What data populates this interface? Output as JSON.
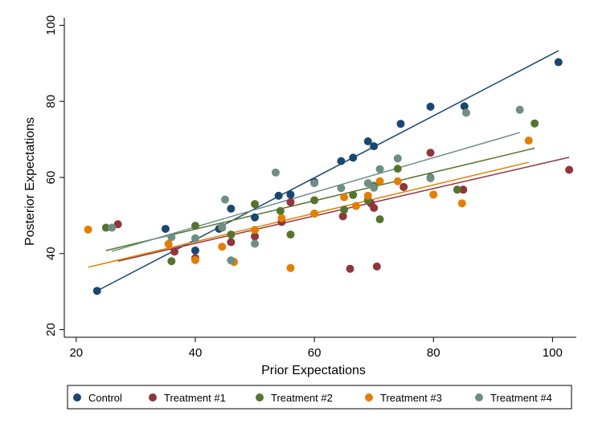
{
  "chart_data": {
    "type": "scatter",
    "title": "",
    "xlabel": "Prior Expectations",
    "ylabel": "Posterior Expectations",
    "xlim": [
      18,
      104
    ],
    "ylim": [
      18,
      102
    ],
    "xticks": [
      20,
      40,
      60,
      80,
      100
    ],
    "yticks": [
      20,
      40,
      60,
      80,
      100
    ],
    "grid": false,
    "legend_position": "bottom",
    "series": [
      {
        "name": "Control",
        "color": "#1a476f",
        "points": [
          [
            23.5,
            30.2
          ],
          [
            35,
            46.5
          ],
          [
            40,
            40.8
          ],
          [
            44,
            46.5
          ],
          [
            46,
            51.8
          ],
          [
            50,
            49.5
          ],
          [
            54,
            55.2
          ],
          [
            56,
            55.5
          ],
          [
            60,
            58.8
          ],
          [
            64.5,
            64.3
          ],
          [
            66.5,
            65.2
          ],
          [
            69,
            69.5
          ],
          [
            70,
            68.2
          ],
          [
            74.5,
            74.1
          ],
          [
            79.5,
            78.6
          ],
          [
            85.2,
            78.7
          ],
          [
            101,
            90.3
          ]
        ],
        "fit": [
          [
            23.5,
            30.2
          ],
          [
            101,
            93.3
          ]
        ]
      },
      {
        "name": "Treatment #1",
        "color": "#90353b",
        "points": [
          [
            27,
            47.7
          ],
          [
            36.5,
            40.5
          ],
          [
            40,
            38.8
          ],
          [
            46,
            43
          ],
          [
            50,
            44.5
          ],
          [
            54.5,
            48.3
          ],
          [
            56,
            53.5
          ],
          [
            60,
            50.5
          ],
          [
            64.8,
            49.8
          ],
          [
            66,
            36
          ],
          [
            69.5,
            53.2
          ],
          [
            70,
            52
          ],
          [
            70.5,
            36.6
          ],
          [
            75,
            57.5
          ],
          [
            79.5,
            66.5
          ],
          [
            85,
            56.8
          ],
          [
            102.8,
            62
          ]
        ],
        "fit": [
          [
            27,
            38
          ],
          [
            102.8,
            65.3
          ]
        ]
      },
      {
        "name": "Treatment #2",
        "color": "#55752f",
        "points": [
          [
            25,
            46.8
          ],
          [
            36,
            38
          ],
          [
            40,
            47.3
          ],
          [
            44.5,
            46.8
          ],
          [
            46,
            45
          ],
          [
            50,
            53
          ],
          [
            54.3,
            51.2
          ],
          [
            56,
            45
          ],
          [
            60,
            54
          ],
          [
            65,
            51.5
          ],
          [
            66.5,
            55.4
          ],
          [
            69,
            54
          ],
          [
            70,
            57.8
          ],
          [
            71,
            49
          ],
          [
            74,
            62.3
          ],
          [
            79.5,
            60
          ],
          [
            84,
            56.8
          ],
          [
            97,
            74.2
          ]
        ],
        "fit": [
          [
            25,
            40.8
          ],
          [
            97,
            67.7
          ]
        ]
      },
      {
        "name": "Treatment #3",
        "color": "#e37e00",
        "points": [
          [
            22,
            46.3
          ],
          [
            35.5,
            42.5
          ],
          [
            40,
            38.3
          ],
          [
            44.5,
            41.8
          ],
          [
            46.5,
            37.8
          ],
          [
            50,
            46.2
          ],
          [
            54.5,
            49.3
          ],
          [
            56,
            36.2
          ],
          [
            60,
            50.5
          ],
          [
            65,
            54.8
          ],
          [
            67,
            52.5
          ],
          [
            69,
            55.2
          ],
          [
            71,
            59
          ],
          [
            74,
            59
          ],
          [
            80,
            55.5
          ],
          [
            84.8,
            53.2
          ],
          [
            96,
            69.7
          ]
        ],
        "fit": [
          [
            22,
            36.4
          ],
          [
            96,
            64
          ]
        ]
      },
      {
        "name": "Treatment #4",
        "color": "#6e8e84",
        "points": [
          [
            26,
            46.8
          ],
          [
            36,
            44.3
          ],
          [
            40,
            44
          ],
          [
            44.5,
            47
          ],
          [
            45,
            54.2
          ],
          [
            46,
            38.2
          ],
          [
            50,
            42.6
          ],
          [
            53.5,
            61.3
          ],
          [
            60,
            58.5
          ],
          [
            64.5,
            57.2
          ],
          [
            69,
            58.5
          ],
          [
            70,
            57.3
          ],
          [
            71,
            62.2
          ],
          [
            74,
            65
          ],
          [
            79.5,
            59.8
          ],
          [
            85.5,
            77
          ],
          [
            94.5,
            77.8
          ]
        ],
        "fit": [
          [
            26,
            40.6
          ],
          [
            94.5,
            71.8
          ]
        ]
      }
    ]
  }
}
